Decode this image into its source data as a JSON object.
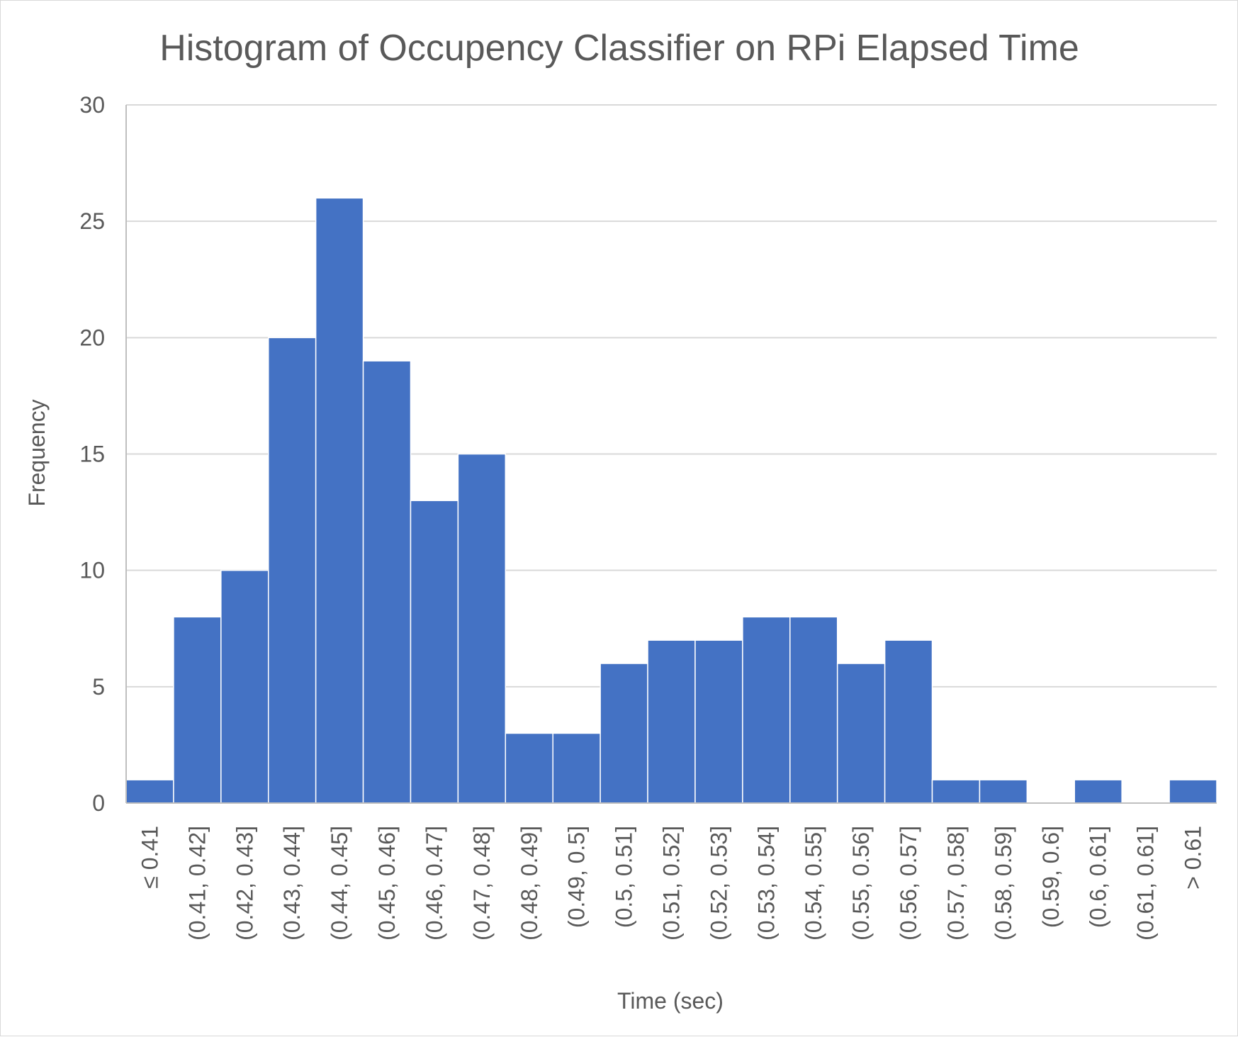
{
  "chart_data": {
    "type": "bar",
    "title": "Histogram of Occupency Classifier on RPi Elapsed Time",
    "xlabel": "Time (sec)",
    "ylabel": "Frequency",
    "ylim": [
      0,
      30
    ],
    "yticks": [
      "0",
      "5",
      "10",
      "15",
      "20",
      "25",
      "30"
    ],
    "grid": true,
    "legend": "none",
    "bar_color": "#4472c4",
    "categories": [
      "≤ 0.41",
      "(0.41, 0.42]",
      "(0.42, 0.43]",
      "(0.43, 0.44]",
      "(0.44, 0.45]",
      "(0.45, 0.46]",
      "(0.46, 0.47]",
      "(0.47, 0.48]",
      "(0.48, 0.49]",
      "(0.49, 0.5]",
      "(0.5, 0.51]",
      "(0.51, 0.52]",
      "(0.52, 0.53]",
      "(0.53, 0.54]",
      "(0.54, 0.55]",
      "(0.55, 0.56]",
      "(0.56, 0.57]",
      "(0.57, 0.58]",
      "(0.58, 0.59]",
      "(0.59, 0.6]",
      "(0.6, 0.61]",
      "(0.61, 0.61]",
      "> 0.61"
    ],
    "values": [
      1,
      8,
      10,
      20,
      26,
      19,
      13,
      15,
      3,
      3,
      6,
      7,
      7,
      8,
      8,
      6,
      7,
      1,
      1,
      0,
      1,
      0,
      1
    ]
  }
}
